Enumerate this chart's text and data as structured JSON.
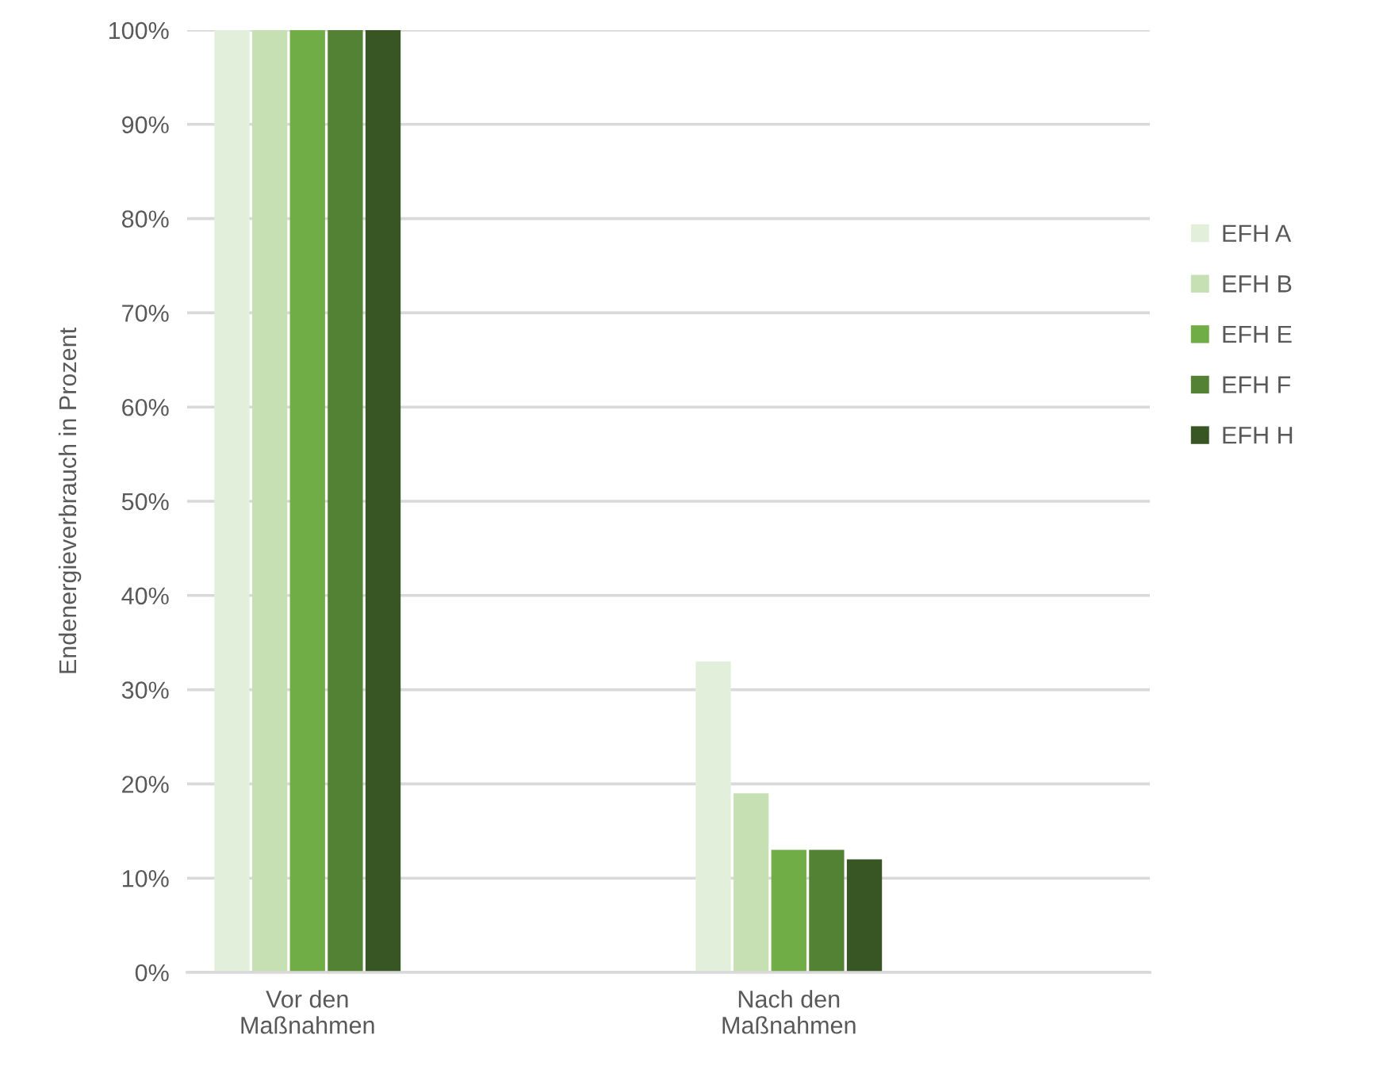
{
  "chart_data": {
    "type": "bar",
    "ylabel": "Endenergieverbrauch in Prozent",
    "categories": [
      "Vor den\nMaßnahmen",
      null,
      "Nach den\nMaßnahmen",
      null
    ],
    "series": [
      {
        "name": "EFH A",
        "color": "#e2efda",
        "values": [
          100,
          null,
          33,
          null
        ]
      },
      {
        "name": "EFH B",
        "color": "#c6e0b4",
        "values": [
          100,
          null,
          19,
          null
        ]
      },
      {
        "name": "EFH E",
        "color": "#70ad47",
        "values": [
          100,
          null,
          13,
          null
        ]
      },
      {
        "name": "EFH F",
        "color": "#548235",
        "values": [
          100,
          null,
          13,
          null
        ]
      },
      {
        "name": "EFH H",
        "color": "#375623",
        "values": [
          100,
          null,
          12,
          null
        ]
      }
    ],
    "ylim": [
      0,
      100
    ],
    "yticks": [
      {
        "value": 0,
        "label": "0%"
      },
      {
        "value": 10,
        "label": "10%"
      },
      {
        "value": 20,
        "label": "20%"
      },
      {
        "value": 30,
        "label": "30%"
      },
      {
        "value": 40,
        "label": "40%"
      },
      {
        "value": 50,
        "label": "50%"
      },
      {
        "value": 60,
        "label": "60%"
      },
      {
        "value": 70,
        "label": "70%"
      },
      {
        "value": 80,
        "label": "80%"
      },
      {
        "value": 90,
        "label": "90%"
      },
      {
        "value": 100,
        "label": "100%"
      }
    ],
    "grid": "y",
    "legend": "right"
  }
}
